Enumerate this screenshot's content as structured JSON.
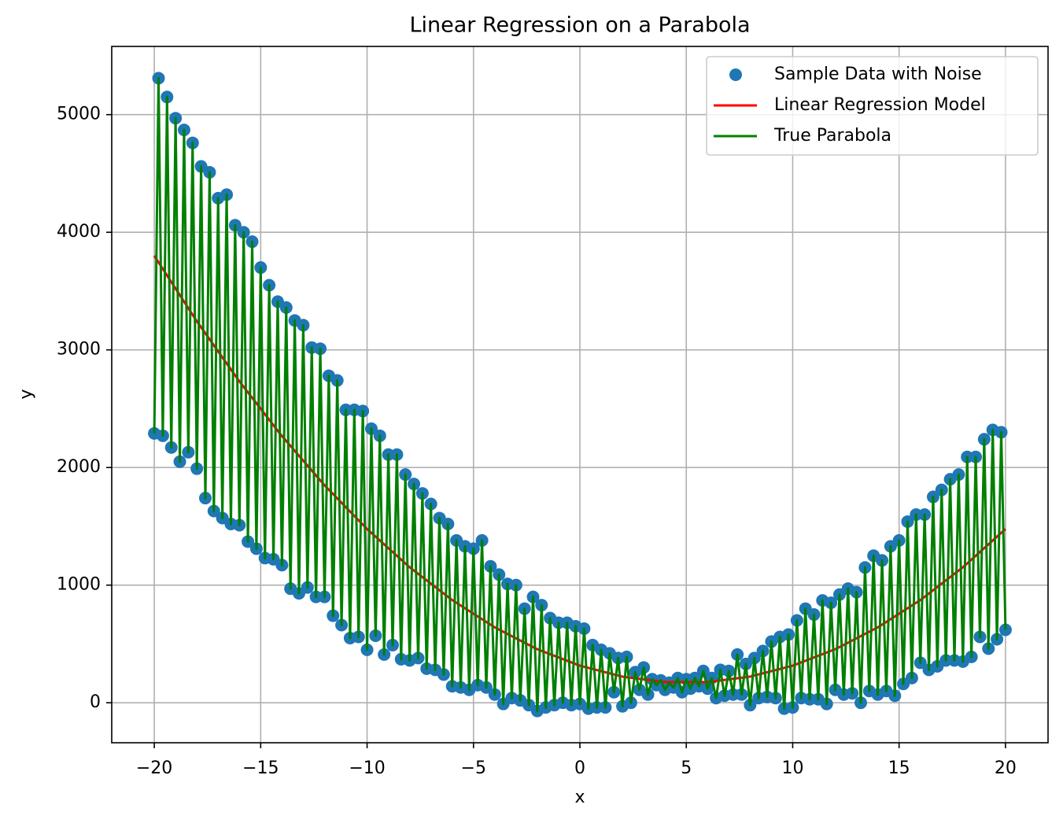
{
  "chart_data": {
    "type": "scatter",
    "title": "Linear Regression on a Parabola",
    "x_label": "x",
    "y_label": "y",
    "xlim": [
      -22,
      22
    ],
    "ylim": [
      -340,
      5580
    ],
    "xticks": [
      {
        "value": -20,
        "label": "−20"
      },
      {
        "value": -15,
        "label": "−15"
      },
      {
        "value": -10,
        "label": "−10"
      },
      {
        "value": -5,
        "label": "−5"
      },
      0,
      5,
      10,
      15,
      20
    ],
    "yticks": [
      0,
      1000,
      2000,
      3000,
      4000,
      5000
    ],
    "grid": true,
    "legend": "upper right",
    "x": [
      -20,
      -19.8,
      -19.6,
      -19.4,
      -19.2,
      -19,
      -18.8,
      -18.6,
      -18.4,
      -18.2,
      -18,
      -17.8,
      -17.6,
      -17.4,
      -17.2,
      -17,
      -16.8,
      -16.6,
      -16.4,
      -16.2,
      -16,
      -15.8,
      -15.6,
      -15.4,
      -15.2,
      -15,
      -14.8,
      -14.6,
      -14.4,
      -14.2,
      -14,
      -13.8,
      -13.6,
      -13.4,
      -13.2,
      -13,
      -12.8,
      -12.6,
      -12.4,
      -12.2,
      -12,
      -11.8,
      -11.6,
      -11.4,
      -11.2,
      -11,
      -10.8,
      -10.6,
      -10.4,
      -10.2,
      -10,
      -9.8,
      -9.6,
      -9.4,
      -9.2,
      -9,
      -8.8,
      -8.6,
      -8.4,
      -8.2,
      -8,
      -7.8,
      -7.6,
      -7.4,
      -7.2,
      -7,
      -6.8,
      -6.6,
      -6.4,
      -6.2,
      -6,
      -5.8,
      -5.6,
      -5.4,
      -5.2,
      -5,
      -4.8,
      -4.6,
      -4.4,
      -4.2,
      -4,
      -3.8,
      -3.6,
      -3.4,
      -3.2,
      -3,
      -2.8,
      -2.6,
      -2.4,
      -2.2,
      -2,
      -1.8,
      -1.6,
      -1.4,
      -1.2,
      -1,
      -0.8,
      -0.6,
      -0.4,
      -0.2,
      0,
      0.2,
      0.4,
      0.6,
      0.8,
      1,
      1.2,
      1.4,
      1.6,
      1.8,
      2,
      2.2,
      2.4,
      2.6,
      2.8,
      3,
      3.2,
      3.4,
      3.6,
      3.8,
      4,
      4.2,
      4.4,
      4.6,
      4.8,
      5,
      5.2,
      5.4,
      5.6,
      5.8,
      6,
      6.2,
      6.4,
      6.6,
      6.8,
      7,
      7.2,
      7.4,
      7.6,
      7.8,
      8,
      8.2,
      8.4,
      8.6,
      8.8,
      9,
      9.2,
      9.4,
      9.6,
      9.8,
      10,
      10.2,
      10.4,
      10.6,
      10.8,
      11,
      11.2,
      11.4,
      11.6,
      11.8,
      12,
      12.2,
      12.4,
      12.6,
      12.8,
      13,
      13.2,
      13.4,
      13.6,
      13.8,
      14,
      14.2,
      14.4,
      14.6,
      14.8,
      15,
      15.2,
      15.4,
      15.6,
      15.8,
      16,
      16.2,
      16.4,
      16.6,
      16.8,
      17,
      17.2,
      17.4,
      17.6,
      17.8,
      18,
      18.2,
      18.4,
      18.6,
      18.8,
      19,
      19.2,
      19.4,
      19.6,
      19.8,
      20
    ],
    "series": [
      {
        "name": "Sample Data with Noise",
        "type": "scatter",
        "color": "#1f77b4",
        "values": [
          2290,
          5310,
          2270,
          5150,
          2170,
          4970,
          2050,
          4870,
          2130,
          4760,
          1990,
          4560,
          1740,
          4510,
          1630,
          4290,
          1570,
          4320,
          1520,
          4060,
          1510,
          4000,
          1370,
          3920,
          1310,
          3700,
          1230,
          3550,
          1220,
          3410,
          1170,
          3360,
          970,
          3250,
          930,
          3210,
          980,
          3020,
          900,
          3010,
          900,
          2780,
          740,
          2740,
          660,
          2490,
          550,
          2490,
          560,
          2480,
          450,
          2330,
          570,
          2270,
          410,
          2110,
          490,
          2110,
          370,
          1940,
          360,
          1860,
          380,
          1780,
          290,
          1690,
          280,
          1570,
          240,
          1520,
          140,
          1380,
          130,
          1330,
          110,
          1310,
          150,
          1380,
          130,
          1160,
          70,
          1090,
          -10,
          1010,
          40,
          1000,
          20,
          800,
          -20,
          900,
          -70,
          830,
          -40,
          720,
          -20,
          680,
          0,
          680,
          -20,
          650,
          -10,
          630,
          -50,
          490,
          -40,
          450,
          -40,
          420,
          90,
          380,
          -30,
          390,
          0,
          260,
          110,
          300,
          70,
          200,
          150,
          190,
          110,
          170,
          130,
          210,
          90,
          200,
          120,
          210,
          140,
          270,
          120,
          210,
          40,
          280,
          60,
          270,
          70,
          410,
          70,
          330,
          -20,
          380,
          40,
          440,
          50,
          520,
          40,
          560,
          -50,
          580,
          -40,
          700,
          40,
          800,
          30,
          750,
          30,
          870,
          -10,
          850,
          110,
          920,
          70,
          970,
          80,
          940,
          0,
          1150,
          100,
          1250,
          70,
          1210,
          100,
          1330,
          60,
          1380,
          160,
          1540,
          210,
          1600,
          340,
          1600,
          280,
          1750,
          310,
          1810,
          360,
          1900,
          360,
          1940,
          350,
          2090,
          390,
          2090,
          560,
          2240,
          460,
          2320,
          540,
          2300,
          620
        ]
      },
      {
        "name": "Linear Regression Model",
        "type": "line",
        "color": "#ff0000",
        "x": [
          -20,
          -18,
          -16,
          -14,
          -12,
          -10,
          -8,
          -6,
          -4,
          -2,
          0,
          2,
          4,
          6,
          8,
          10,
          12,
          14,
          16,
          18,
          20
        ],
        "values": [
          3800,
          3243,
          2732,
          2267,
          1849,
          1477,
          1152,
          873,
          641,
          455,
          315,
          222,
          176,
          176,
          222,
          315,
          455,
          641,
          873,
          1152,
          1477
        ]
      },
      {
        "name": "True Parabola",
        "type": "line",
        "color": "#008000",
        "values": [
          2290,
          5310,
          2270,
          5150,
          2170,
          4970,
          2050,
          4870,
          2130,
          4760,
          1990,
          4560,
          1740,
          4510,
          1630,
          4290,
          1570,
          4320,
          1520,
          4060,
          1510,
          4000,
          1370,
          3920,
          1310,
          3700,
          1230,
          3550,
          1220,
          3410,
          1170,
          3360,
          970,
          3250,
          930,
          3210,
          980,
          3020,
          900,
          3010,
          900,
          2780,
          740,
          2740,
          660,
          2490,
          550,
          2490,
          560,
          2480,
          450,
          2330,
          570,
          2270,
          410,
          2110,
          490,
          2110,
          370,
          1940,
          360,
          1860,
          380,
          1780,
          290,
          1690,
          280,
          1570,
          240,
          1520,
          140,
          1380,
          130,
          1330,
          110,
          1310,
          150,
          1380,
          130,
          1160,
          70,
          1090,
          -10,
          1010,
          40,
          1000,
          20,
          800,
          -20,
          900,
          -70,
          830,
          -40,
          720,
          -20,
          680,
          0,
          680,
          -20,
          650,
          -10,
          630,
          -50,
          490,
          -40,
          450,
          -40,
          420,
          90,
          380,
          -30,
          390,
          0,
          260,
          110,
          300,
          70,
          200,
          150,
          190,
          110,
          170,
          130,
          210,
          90,
          200,
          120,
          210,
          140,
          270,
          120,
          210,
          40,
          280,
          60,
          270,
          70,
          410,
          70,
          330,
          -20,
          380,
          40,
          440,
          50,
          520,
          40,
          560,
          -50,
          580,
          -40,
          700,
          40,
          800,
          30,
          750,
          30,
          870,
          -10,
          850,
          110,
          920,
          70,
          970,
          80,
          940,
          0,
          1150,
          100,
          1250,
          70,
          1210,
          100,
          1330,
          60,
          1380,
          160,
          1540,
          210,
          1600,
          340,
          1600,
          280,
          1750,
          310,
          1810,
          360,
          1900,
          360,
          1940,
          350,
          2090,
          390,
          2090,
          560,
          2240,
          460,
          2320,
          540,
          2300,
          620
        ]
      }
    ]
  }
}
